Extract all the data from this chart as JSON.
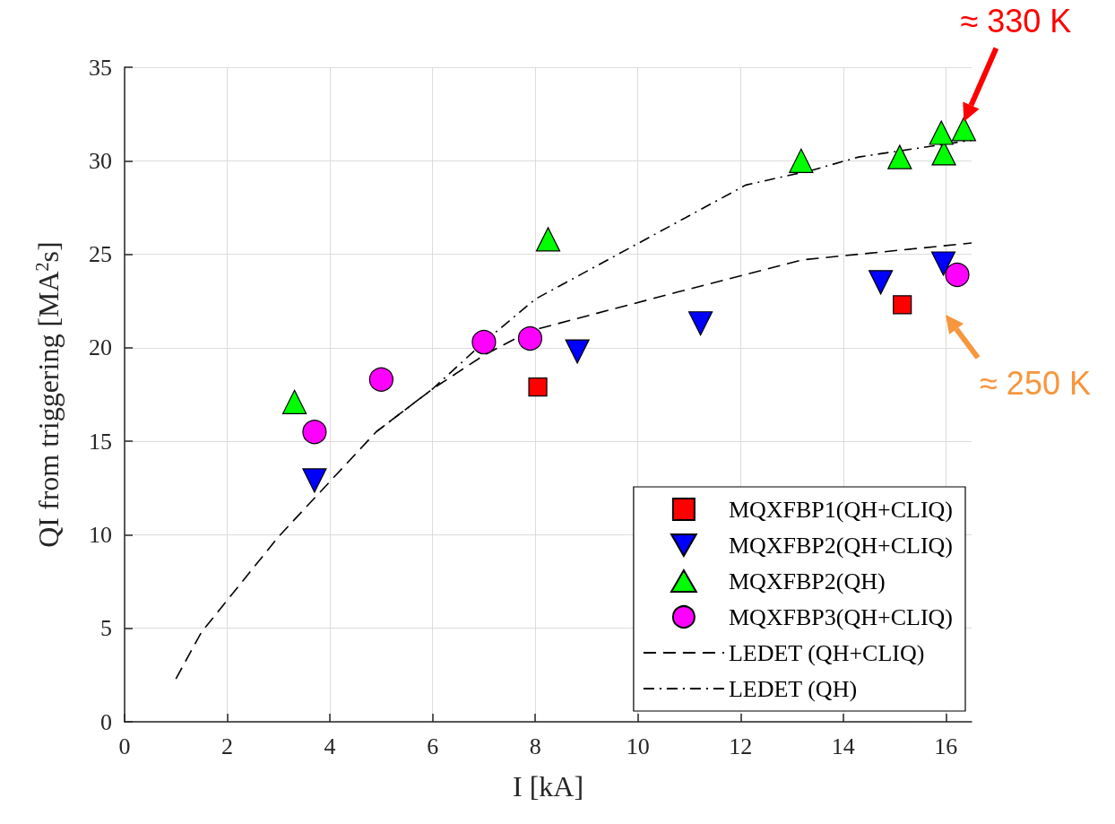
{
  "chart_data": {
    "type": "scatter",
    "xlabel": "I [kA]",
    "ylabel": "QI from triggering [MA$^{2}$s]",
    "xlim": [
      0,
      16.5
    ],
    "xticks": [
      0,
      2,
      4,
      6,
      8,
      10,
      12,
      14,
      16
    ],
    "ylim": [
      0,
      35
    ],
    "yticks": [
      0,
      5,
      10,
      15,
      20,
      25,
      30,
      35
    ],
    "grid": true,
    "legend": "bottom right",
    "series": [
      {
        "name": "MQXFBP1(QH+CLIQ)",
        "color": "#ff0000",
        "marker": "square",
        "x": [
          8.05,
          15.15
        ],
        "values": [
          17.9,
          22.3
        ]
      },
      {
        "name": "MQXFBP2(QH+CLIQ)",
        "color": "#0000ff",
        "marker": "triangle_down",
        "x": [
          3.7,
          8.82,
          11.22,
          14.73,
          15.95
        ],
        "values": [
          12.9,
          19.8,
          21.3,
          23.5,
          24.5
        ]
      },
      {
        "name": "MQXFBP2(QH)",
        "color": "#00ff00",
        "marker": "triangle",
        "x": [
          3.31,
          8.25,
          13.18,
          15.1,
          15.96,
          15.91,
          16.35
        ],
        "values": [
          17.1,
          25.8,
          30.0,
          30.2,
          30.4,
          31.5,
          31.7
        ]
      },
      {
        "name": "MQXFBP3(QH+CLIQ)",
        "color": "#ff00ff",
        "marker": "circle",
        "x": [
          3.7,
          5.0,
          7.0,
          7.9,
          16.22
        ],
        "values": [
          15.5,
          18.3,
          20.3,
          20.5,
          23.9
        ]
      },
      {
        "name": "LEDET (QH+CLIQ)",
        "type": "line",
        "color": "#000000",
        "marker": "none",
        "line_style": "dashed",
        "x": [
          1,
          1.5,
          2,
          3,
          4.9,
          6,
          7,
          7.9,
          10.8,
          13.2,
          16.5
        ],
        "values": [
          2.3,
          4.8,
          6.5,
          9.9,
          15.5,
          17.8,
          19.6,
          20.9,
          23.0,
          24.7,
          25.6
        ]
      },
      {
        "name": "LEDET (QH)",
        "type": "line",
        "color": "#000000",
        "marker": "none",
        "line_style": "dashdot",
        "x": [
          4.9,
          6,
          7,
          8.0,
          12.1,
          13.4,
          14.3,
          16.5
        ],
        "values": [
          15.5,
          17.8,
          20.3,
          22.6,
          28.7,
          29.5,
          30.2,
          31.1
        ]
      }
    ],
    "annotations": [
      {
        "text": "≈ 330 K",
        "x": 16.35,
        "y": 31.7
      },
      "≈ 250 K"
    ]
  }
}
